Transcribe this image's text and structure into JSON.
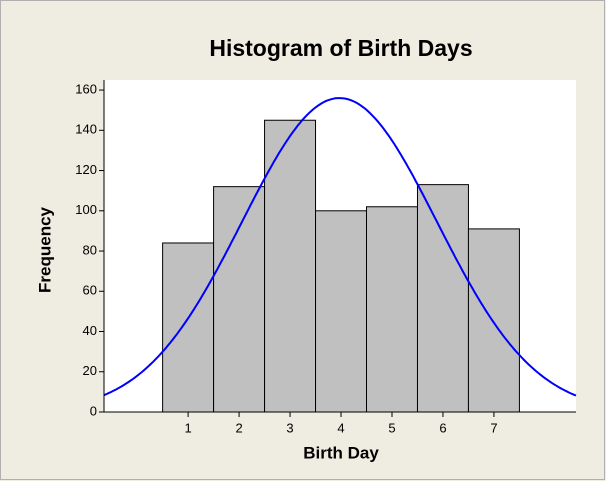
{
  "chart_data": {
    "type": "histogram",
    "title": "Histogram of Birth Days",
    "x_label": "Birth Day",
    "y_label": "Frequency",
    "bins": [
      0.5,
      1.5,
      2.5,
      3.5,
      4.5,
      5.5,
      6.5,
      7.5
    ],
    "values": [
      84,
      112,
      145,
      100,
      102,
      113,
      91
    ],
    "color": "#c0c0c0",
    "fit": {
      "mean": 3.97,
      "sd": 1.91,
      "color": "#0000ff"
    },
    "xlim": [
      -0.65,
      8.61
    ],
    "xticks": [
      1,
      2,
      3,
      4,
      5,
      6,
      7
    ],
    "ylim": [
      0,
      165
    ],
    "yticks": [
      0,
      20,
      40,
      60,
      80,
      100,
      120,
      140,
      160
    ]
  }
}
